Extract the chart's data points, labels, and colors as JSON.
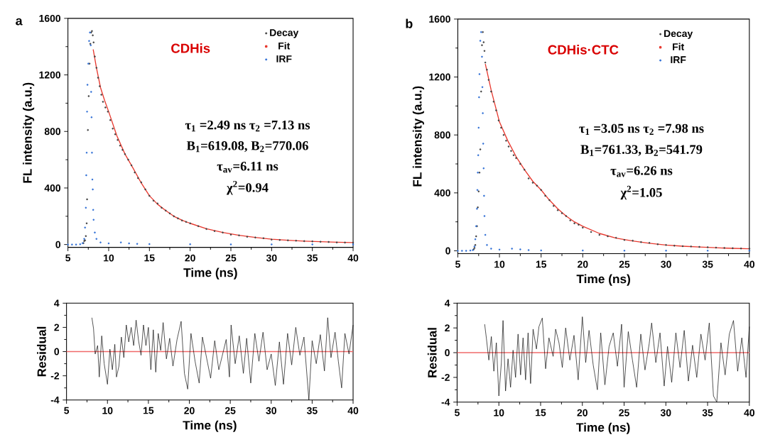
{
  "chart_data": [
    {
      "type": "scatter",
      "title": "a",
      "xlabel": "Time (ns)",
      "ylabel": "FL intensity (a.u.)",
      "xlim": [
        5,
        40
      ],
      "xticks": [
        5,
        10,
        15,
        20,
        25,
        30,
        35,
        40
      ],
      "ylim": [
        -20,
        1600
      ],
      "yticks": [
        0,
        400,
        800,
        1200,
        1600
      ],
      "legend": "top right",
      "marker": "circle",
      "annotations": [
        "CDHis",
        "τ$_{1}$ =2.49 ns  τ$_{2}$ =7.13 ns",
        "B$_{1}$=619.08, B$_{2}$=770.06",
        "τ$_{av}$=6.11 ns",
        "χ$^{2}$=0.94"
      ],
      "series": [
        {
          "name": "Decay",
          "color": "#404040",
          "x": [
            6.9,
            7.0,
            7.1,
            7.2,
            7.3,
            7.35,
            7.45,
            7.55,
            7.65,
            7.75,
            7.85,
            7.95,
            8.05,
            8.15,
            8.3,
            8.5,
            8.7,
            8.9,
            9.1,
            9.3,
            9.6,
            9.9,
            10.2,
            10.5,
            10.8,
            11.1,
            11.4,
            11.7,
            12.0,
            12.4,
            12.8,
            13.2,
            13.6,
            14.0,
            14.5,
            15.0,
            15.5,
            16.0,
            16.5,
            17.0,
            17.5,
            18.0,
            18.5,
            19.0,
            19.5,
            20.0,
            21,
            22,
            23,
            24,
            25,
            26,
            27,
            28,
            29,
            30,
            31,
            32,
            33,
            34,
            35,
            36,
            37,
            38,
            39,
            40
          ],
          "values": [
            10,
            25,
            30,
            60,
            150,
            320,
            810,
            1050,
            1280,
            1420,
            1500,
            1510,
            1480,
            1430,
            1330,
            1250,
            1180,
            1120,
            1060,
            1010,
            970,
            940,
            880,
            820,
            780,
            740,
            700,
            670,
            640,
            600,
            560,
            510,
            470,
            440,
            390,
            345,
            310,
            290,
            260,
            240,
            220,
            200,
            185,
            170,
            160,
            150,
            130,
            110,
            95,
            85,
            70,
            65,
            55,
            50,
            45,
            35,
            32,
            30,
            27,
            24,
            22,
            20,
            18,
            15,
            14,
            13
          ]
        },
        {
          "name": "Fit",
          "type": "line",
          "marker": "none",
          "color": "#e8392f",
          "x": [
            8.1,
            8.5,
            9,
            9.5,
            10,
            11,
            12,
            13,
            14,
            15,
            16,
            17,
            18,
            19,
            20,
            22,
            24,
            26,
            28,
            30,
            32,
            34,
            36,
            38,
            40
          ],
          "values": [
            1380,
            1250,
            1110,
            1020,
            940,
            770,
            640,
            540,
            435,
            345,
            285,
            240,
            200,
            172,
            150,
            112,
            85,
            65,
            50,
            38,
            30,
            24,
            20,
            16,
            14
          ]
        },
        {
          "name": "IRF",
          "color": "#2f6fd6",
          "x": [
            5,
            5.5,
            6,
            6.5,
            6.8,
            7.0,
            7.1,
            7.2,
            7.25,
            7.3,
            7.35,
            7.4,
            7.5,
            7.6,
            7.7,
            7.8,
            7.85,
            7.9,
            7.95,
            8.0,
            8.05,
            8.1,
            8.15,
            8.3,
            8.5,
            9,
            10,
            11.5,
            12.5,
            13.5,
            15,
            20,
            25,
            30,
            35,
            40
          ],
          "values": [
            0,
            0,
            0,
            2,
            10,
            40,
            120,
            260,
            490,
            650,
            940,
            1130,
            1280,
            1440,
            1500,
            1410,
            1080,
            900,
            650,
            460,
            390,
            245,
            175,
            85,
            40,
            15,
            8,
            15,
            8,
            5,
            3,
            2,
            1,
            1,
            1,
            1
          ]
        }
      ]
    },
    {
      "type": "scatter",
      "title": "b",
      "xlabel": "Time (ns)",
      "ylabel": "FL intensity (a.u.)",
      "xlim": [
        5,
        40
      ],
      "xticks": [
        5,
        10,
        15,
        20,
        25,
        30,
        35,
        40
      ],
      "ylim": [
        -20,
        1600
      ],
      "yticks": [
        0,
        400,
        800,
        1200,
        1600
      ],
      "legend": "top right",
      "marker": "circle",
      "annotations": [
        "CDHis·CTC",
        "τ$_{1}$ =3.05 ns  τ$_{2}$ =7.98 ns",
        "B$_{1}$=761.33, B$_{2}$=541.79",
        "τ$_{av}$=6.26 ns",
        "χ$^{2}$=1.05"
      ],
      "series": [
        {
          "name": "Decay",
          "color": "#404040",
          "x": [
            6.9,
            7.0,
            7.1,
            7.2,
            7.3,
            7.4,
            7.5,
            7.6,
            7.7,
            7.8,
            7.9,
            8.0,
            8.1,
            8.2,
            8.3,
            8.5,
            8.7,
            9.0,
            9.3,
            9.6,
            9.9,
            10.2,
            10.5,
            10.8,
            11.1,
            11.4,
            11.7,
            12.0,
            12.5,
            13,
            13.5,
            14,
            14.5,
            15,
            15.5,
            16,
            16.5,
            17,
            17.5,
            18,
            18.5,
            19,
            19.5,
            20,
            21,
            22,
            23,
            24,
            25,
            26,
            27,
            28,
            29,
            30,
            31,
            32,
            33,
            34,
            35,
            36,
            37,
            38,
            39,
            40
          ],
          "values": [
            10,
            20,
            40,
            100,
            170,
            300,
            410,
            540,
            700,
            1100,
            1420,
            1510,
            1440,
            1380,
            1300,
            1250,
            1180,
            1100,
            1030,
            970,
            900,
            850,
            800,
            760,
            720,
            690,
            660,
            640,
            600,
            560,
            500,
            470,
            450,
            420,
            380,
            350,
            310,
            280,
            260,
            240,
            210,
            190,
            180,
            160,
            130,
            110,
            100,
            90,
            75,
            70,
            60,
            55,
            45,
            40,
            35,
            32,
            30,
            27,
            25,
            22,
            20,
            18,
            16,
            15
          ]
        },
        {
          "name": "Fit",
          "type": "line",
          "marker": "none",
          "color": "#e8392f",
          "x": [
            8.3,
            8.5,
            9,
            9.5,
            10,
            11,
            12,
            13,
            14,
            15,
            16,
            17,
            18,
            19,
            20,
            22,
            24,
            26,
            28,
            30,
            32,
            34,
            36,
            38,
            40
          ],
          "values": [
            1290,
            1240,
            1110,
            1000,
            890,
            760,
            650,
            560,
            480,
            420,
            350,
            290,
            240,
            200,
            170,
            120,
            88,
            68,
            52,
            40,
            32,
            26,
            21,
            17,
            14
          ]
        },
        {
          "name": "IRF",
          "color": "#2f6fd6",
          "x": [
            5,
            5.5,
            6,
            6.5,
            6.8,
            7.0,
            7.1,
            7.2,
            7.3,
            7.35,
            7.4,
            7.45,
            7.5,
            7.55,
            7.6,
            7.7,
            7.8,
            7.9,
            7.95,
            8.0,
            8.05,
            8.1,
            8.15,
            8.2,
            8.3,
            8.5,
            9,
            10,
            11.5,
            12.5,
            13.5,
            15,
            20,
            25,
            30,
            35,
            40
          ],
          "values": [
            0,
            0,
            0,
            2,
            5,
            30,
            80,
            170,
            290,
            420,
            540,
            660,
            850,
            1060,
            1220,
            1450,
            1510,
            1340,
            1130,
            950,
            740,
            570,
            380,
            240,
            110,
            40,
            15,
            8,
            15,
            10,
            5,
            3,
            2,
            1,
            1,
            1,
            1
          ]
        }
      ]
    },
    {
      "type": "line",
      "xlabel": "Time (ns)",
      "ylabel": "Residual",
      "xlim": [
        5,
        40
      ],
      "xticks": [
        5,
        10,
        15,
        20,
        25,
        30,
        35,
        40
      ],
      "ylim": [
        -4,
        4
      ],
      "yticks": [
        -4,
        -2,
        0,
        2,
        4
      ],
      "ref_lines": [
        {
          "axis": "y",
          "value": 0,
          "color": "#f06a6a"
        }
      ],
      "series": [
        {
          "color": "#000000",
          "x": [
            8.1,
            8.3,
            8.5,
            8.8,
            9.0,
            9.3,
            9.6,
            10.0,
            10.3,
            10.6,
            10.9,
            11.1,
            11.4,
            11.7,
            12.0,
            12.3,
            12.6,
            12.9,
            13.2,
            13.5,
            13.8,
            14.1,
            14.4,
            14.7,
            15.0,
            15.3,
            15.6,
            15.9,
            16.2,
            16.5,
            16.8,
            17.2,
            17.6,
            18.0,
            18.5,
            19.0,
            19.4,
            19.8,
            20.2,
            20.7,
            21.2,
            21.6,
            22.1,
            22.6,
            23.1,
            23.6,
            24.0,
            24.5,
            24.9,
            25.1,
            25.6,
            26.1,
            26.6,
            27.0,
            27.5,
            28.0,
            28.5,
            29.0,
            29.5,
            30.0,
            30.5,
            31.0,
            31.5,
            32.0,
            32.5,
            33.0,
            33.5,
            34.0,
            34.6,
            35.0,
            35.5,
            36.0,
            36.5,
            36.9,
            37.3,
            37.8,
            38.2,
            38.6,
            39.0,
            39.5,
            40.0
          ],
          "values": [
            2.8,
            1.9,
            -0.2,
            0.5,
            -2.1,
            1.3,
            -1.0,
            -2.7,
            0.2,
            -1.5,
            0.6,
            -2.1,
            -1.2,
            1.2,
            -0.5,
            2.2,
            0.8,
            2.0,
            0.5,
            2.6,
            0.9,
            -0.3,
            2.2,
            0.5,
            2.0,
            -1.5,
            1.8,
            -1.7,
            1.5,
            0.1,
            2.4,
            -0.6,
            1.1,
            -1.2,
            1.0,
            2.5,
            -1.8,
            -3.1,
            1.5,
            -0.8,
            -2.6,
            1.2,
            -0.5,
            -2.2,
            0.9,
            -1.5,
            -0.4,
            1.0,
            -2.1,
            2.2,
            -1.0,
            1.3,
            -1.8,
            1.1,
            -2.6,
            1.5,
            -0.8,
            1.6,
            -1.5,
            -0.2,
            -2.8,
            0.8,
            -2.7,
            1.5,
            -1.1,
            2.0,
            -0.3,
            1.2,
            -4.0,
            0.9,
            -1.0,
            1.4,
            -1.6,
            2.8,
            -0.5,
            1.6,
            -0.8,
            -3.0,
            1.5,
            -0.2,
            2.2
          ]
        }
      ]
    },
    {
      "type": "line",
      "xlabel": "Time (ns)",
      "ylabel": "Residual",
      "xlim": [
        5,
        40
      ],
      "xticks": [
        5,
        10,
        15,
        20,
        25,
        30,
        35,
        40
      ],
      "ylim": [
        -4,
        4
      ],
      "yticks": [
        -4,
        -2,
        0,
        2,
        4
      ],
      "ref_lines": [
        {
          "axis": "y",
          "value": 0,
          "color": "#f06a6a"
        }
      ],
      "series": [
        {
          "color": "#000000",
          "x": [
            8.3,
            8.5,
            8.8,
            9.1,
            9.4,
            9.7,
            10.0,
            10.3,
            10.5,
            10.8,
            11.1,
            11.4,
            11.7,
            12.0,
            12.3,
            12.6,
            12.9,
            13.2,
            13.5,
            13.8,
            14.1,
            14.5,
            14.8,
            15.2,
            15.6,
            16.0,
            16.5,
            16.8,
            17.2,
            17.6,
            18.0,
            18.5,
            19.0,
            19.5,
            20.0,
            20.4,
            20.8,
            21.3,
            21.8,
            22.2,
            22.7,
            23.2,
            23.7,
            24.2,
            24.7,
            25.0,
            25.5,
            26.0,
            26.5,
            27.0,
            27.5,
            28.0,
            28.3,
            28.8,
            29.3,
            29.8,
            30.2,
            30.7,
            31.2,
            31.7,
            32.2,
            32.7,
            33.2,
            33.7,
            34.2,
            34.7,
            35.2,
            35.7,
            36.1,
            36.6,
            37.1,
            37.6,
            38.1,
            38.6,
            39.1,
            39.6,
            40.0
          ],
          "values": [
            2.3,
            1.2,
            -0.6,
            1.3,
            -1.5,
            0.8,
            -3.5,
            -0.8,
            2.6,
            -3.1,
            -0.5,
            -2.8,
            0.2,
            -2.0,
            1.5,
            -1.8,
            1.2,
            -2.2,
            1.6,
            -2.5,
            1.9,
            0.3,
            2.1,
            2.8,
            -1.3,
            1.2,
            -0.3,
            1.9,
            0.8,
            -1.2,
            2.0,
            -0.6,
            1.4,
            -2.2,
            2.9,
            -0.8,
            1.8,
            -1.0,
            -3.0,
            1.6,
            -2.6,
            0.5,
            1.6,
            -1.1,
            2.3,
            -2.8,
            1.7,
            -0.6,
            -2.8,
            1.5,
            -1.4,
            0.7,
            2.4,
            -0.8,
            1.6,
            -2.7,
            0.5,
            -2.4,
            1.6,
            -1.2,
            1.8,
            -2.3,
            0.6,
            -2.0,
            1.5,
            -0.6,
            2.4,
            -3.5,
            -4.0,
            0.8,
            -1.8,
            1.5,
            2.6,
            -1.5,
            1.2,
            -2.0,
            2.1
          ]
        }
      ]
    }
  ]
}
